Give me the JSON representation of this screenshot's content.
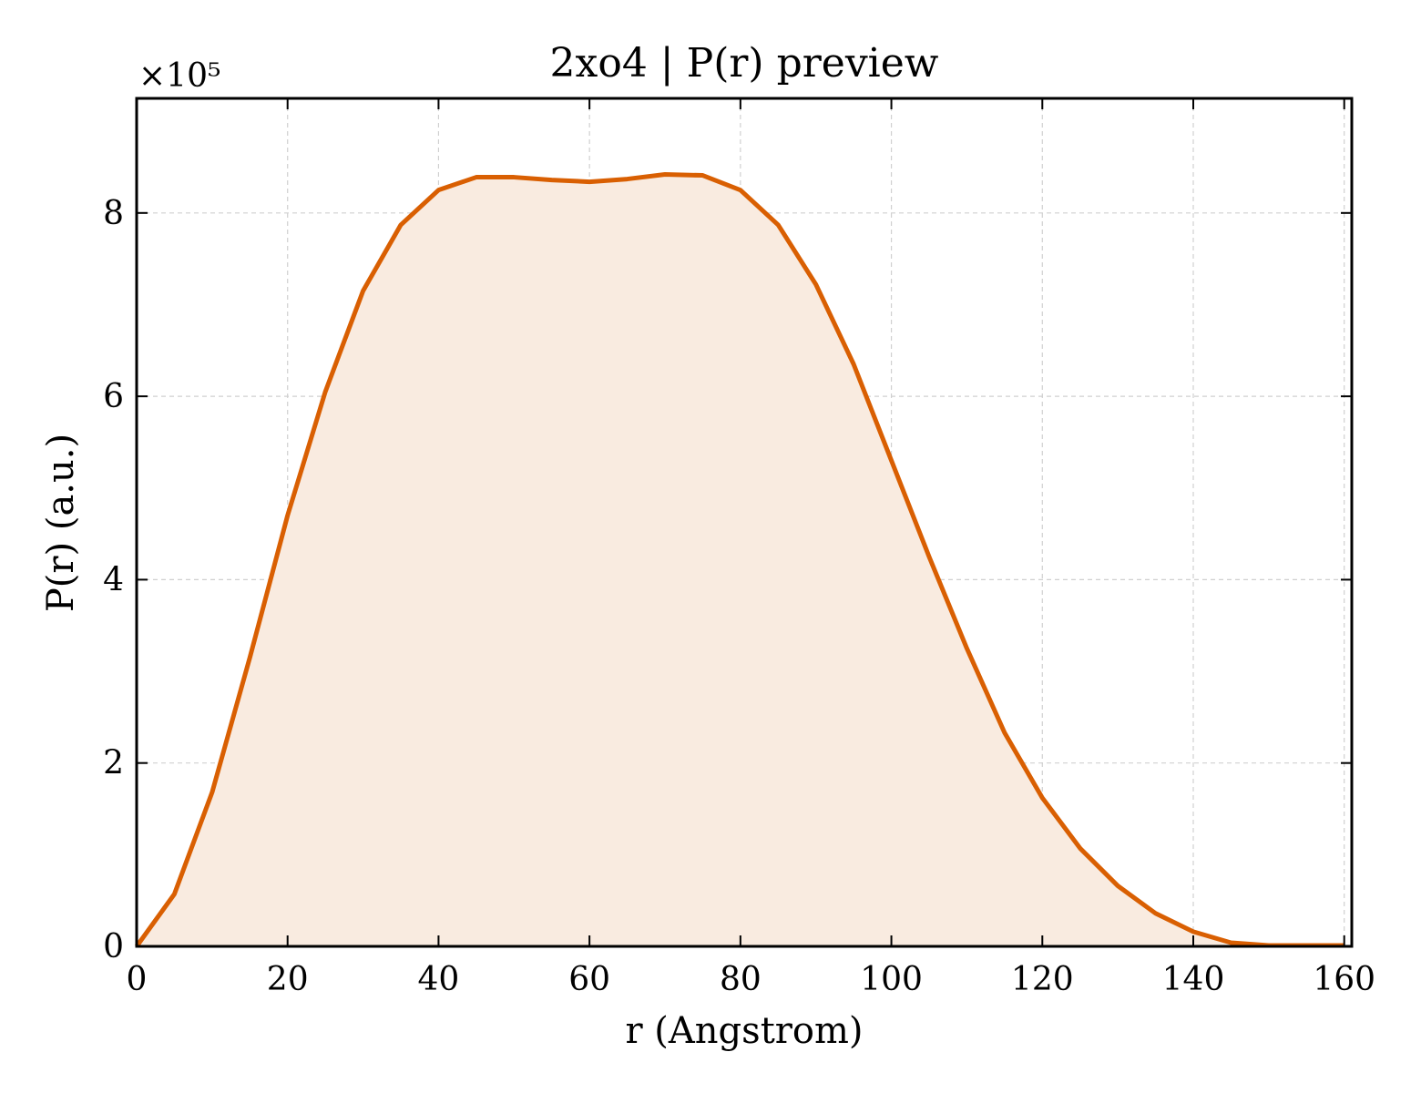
{
  "chart_data": {
    "type": "area",
    "title": "2xo4 | P(r) preview",
    "xlabel": "r (Angstrom)",
    "ylabel": "P(r) (a.u.)",
    "y_offset_label": "×10⁵",
    "y_scale": 100000,
    "xlim": [
      0,
      161
    ],
    "ylim": [
      0,
      9.25
    ],
    "xticks": [
      0,
      20,
      40,
      60,
      80,
      100,
      120,
      140,
      160
    ],
    "yticks": [
      0,
      2,
      4,
      6,
      8
    ],
    "grid": true,
    "line_color": "#d95f02",
    "fill_color": "#f9ebe0",
    "series": [
      {
        "x": [
          0,
          5,
          10,
          15,
          20,
          25,
          30,
          35,
          40,
          45,
          50,
          55,
          60,
          65,
          70,
          75,
          80,
          85,
          90,
          95,
          100,
          105,
          110,
          115,
          120,
          125,
          130,
          135,
          140,
          145,
          150,
          155,
          160
        ],
        "y": [
          0,
          0.57,
          1.68,
          3.15,
          4.7,
          6.05,
          7.15,
          7.87,
          8.25,
          8.39,
          8.39,
          8.36,
          8.34,
          8.37,
          8.42,
          8.41,
          8.25,
          7.87,
          7.22,
          6.35,
          5.3,
          4.25,
          3.25,
          2.33,
          1.62,
          1.07,
          0.66,
          0.36,
          0.16,
          0.04,
          0.01,
          0.01,
          0.01
        ]
      }
    ]
  }
}
